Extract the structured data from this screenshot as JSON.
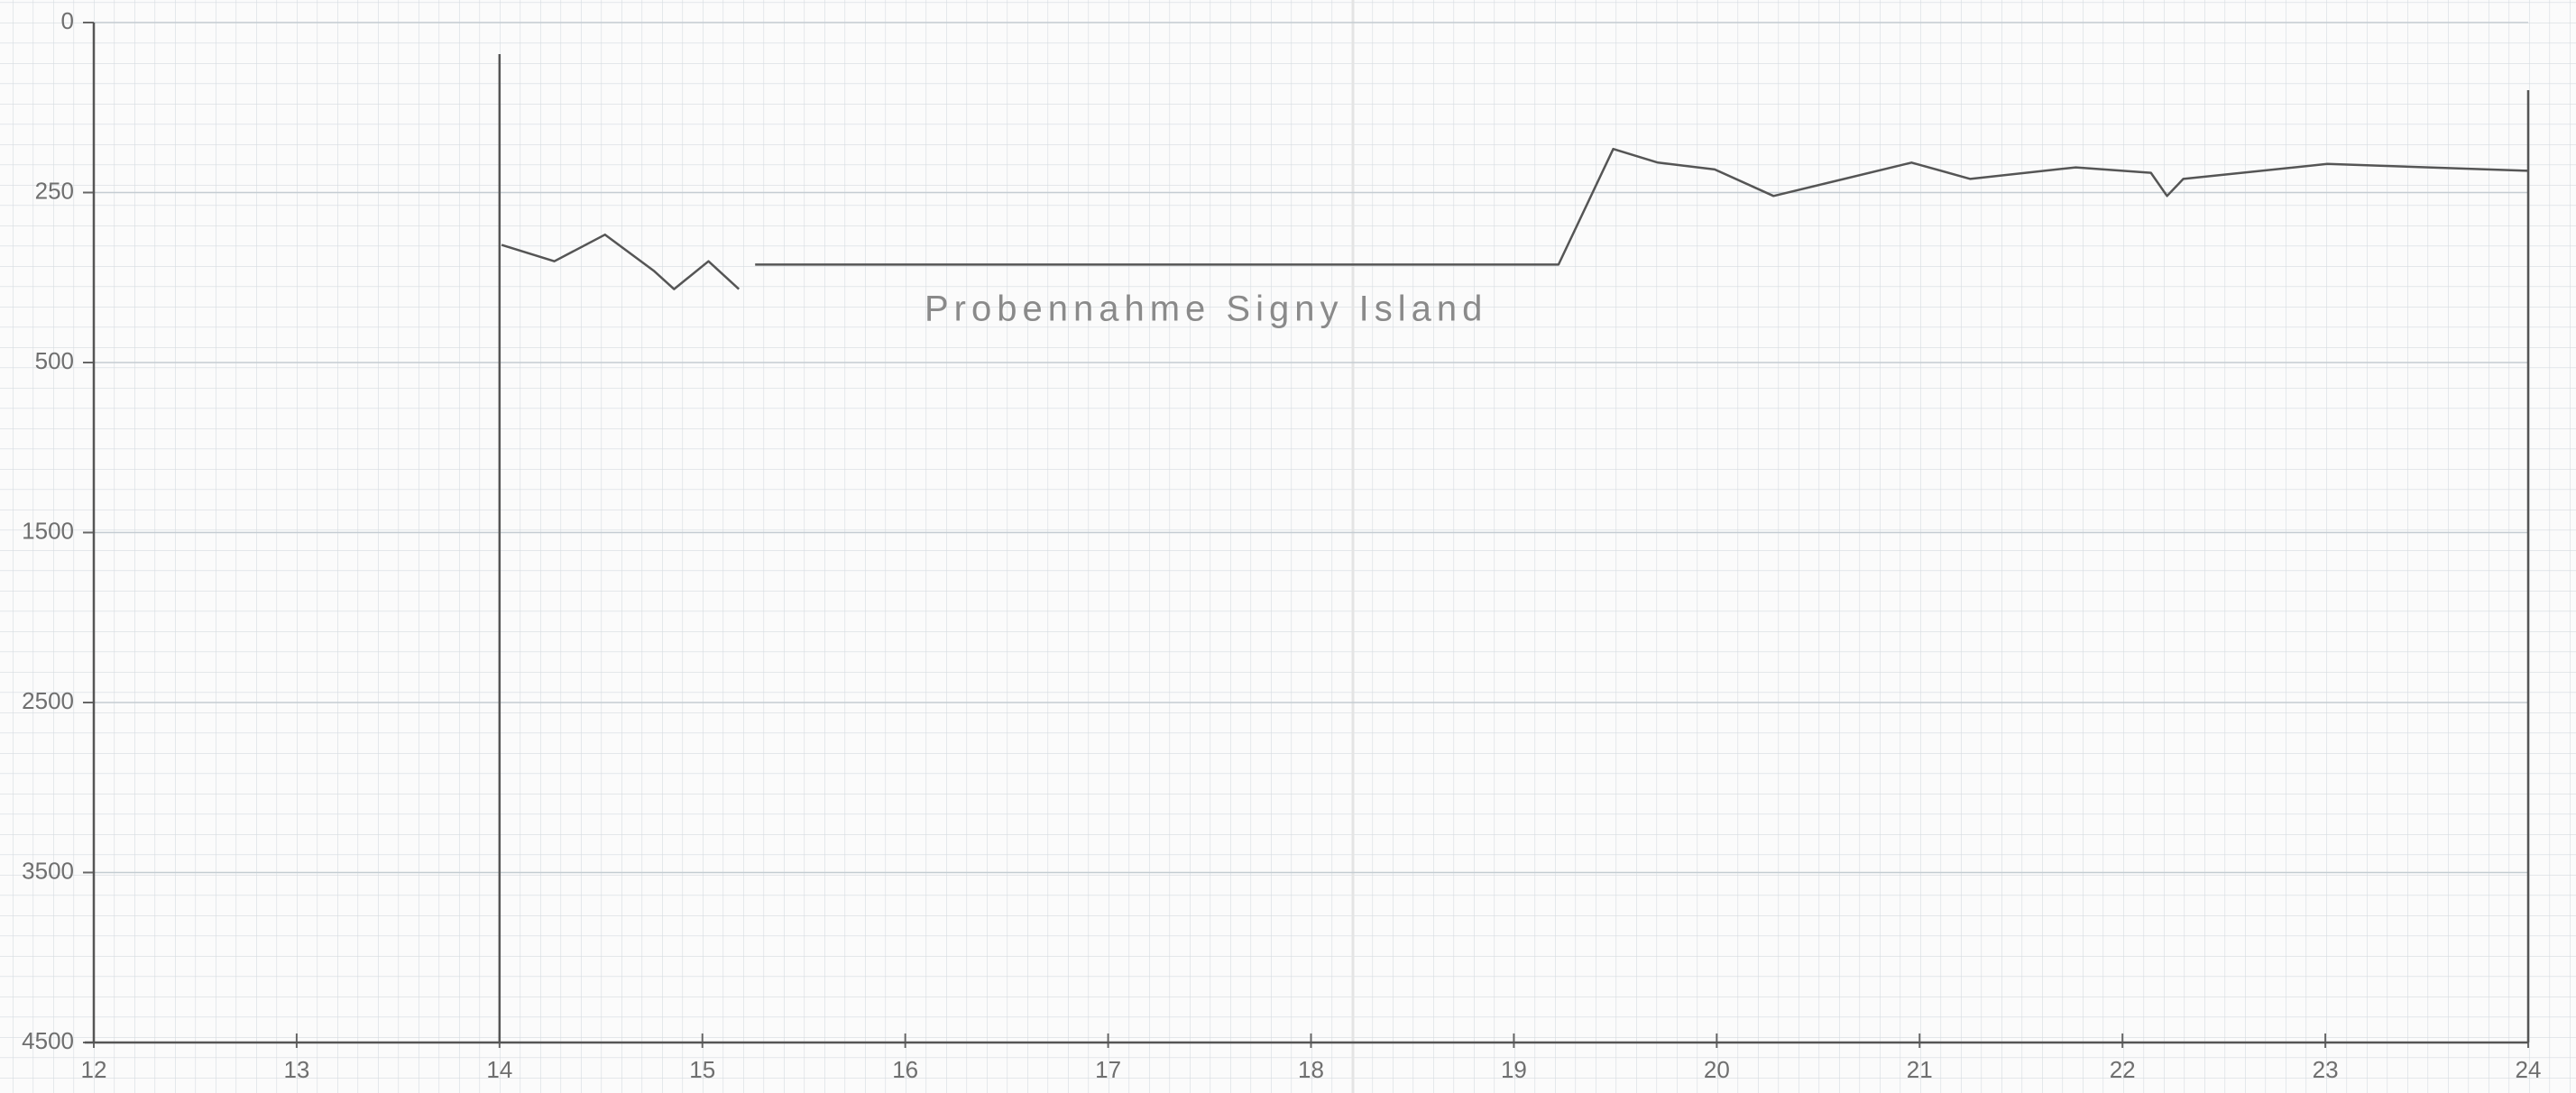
{
  "chart_data": {
    "type": "line",
    "annotation": "Probennahme Signy Island",
    "x": [
      14.01,
      14.27,
      14.52,
      14.76,
      14.86,
      15.03,
      15.18,
      null,
      15.26,
      19.22,
      19.49,
      19.71,
      19.99,
      20.28,
      20.96,
      21.25,
      21.77,
      22.14,
      22.22,
      22.3,
      23.01,
      24.0
    ],
    "series": [
      {
        "color": "#555555",
        "values": [
          327,
          351,
          312,
          365,
          392,
          351,
          392,
          null,
          356,
          356,
          186,
          206,
          216,
          255,
          206,
          230,
          213,
          221,
          255,
          230,
          208,
          218
        ]
      }
    ],
    "xlim": [
      12,
      24
    ],
    "xticks": [
      12,
      13,
      14,
      15,
      16,
      17,
      18,
      19,
      20,
      21,
      22,
      23,
      24
    ],
    "ylim": [
      0,
      4500
    ],
    "yticks": [
      0,
      250,
      500,
      1500,
      2500,
      3500,
      4500
    ],
    "y_inverted": true,
    "grid": true
  }
}
